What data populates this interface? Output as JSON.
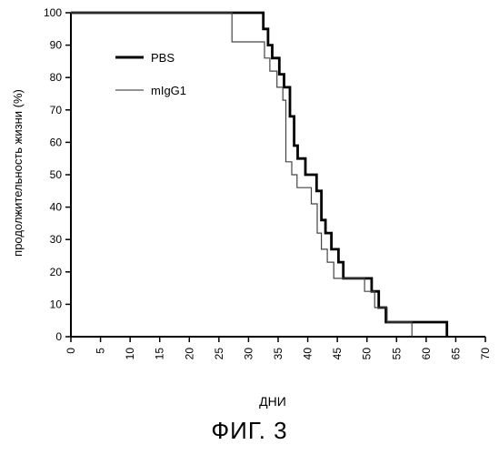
{
  "chart_data": {
    "type": "line",
    "xlabel": "ДНИ",
    "ylabel": "продолжительность жизни (%)",
    "xlim": [
      0,
      70
    ],
    "ylim": [
      0,
      100
    ],
    "x_ticks": [
      "0",
      "5",
      "10",
      "15",
      "20",
      "25",
      "30",
      "35",
      "40",
      "45",
      "50",
      "55",
      "60",
      "65",
      "70"
    ],
    "y_ticks": [
      "0",
      "10",
      "20",
      "30",
      "40",
      "50",
      "60",
      "70",
      "80",
      "90",
      "100"
    ],
    "legend_position": "upper-left",
    "grid": false,
    "series": [
      {
        "name": "PBS",
        "style": "thick",
        "color": "#000000",
        "x": [
          0,
          32.5,
          32.5,
          33.3,
          33.3,
          34,
          34,
          35.2,
          35.2,
          36,
          36,
          37,
          37,
          37.7,
          37.7,
          38.3,
          38.3,
          39.6,
          39.6,
          41.5,
          41.5,
          42.3,
          42.3,
          43,
          43,
          44,
          44,
          45.2,
          45.2,
          46,
          46,
          50.8,
          50.8,
          52,
          52,
          53.2,
          53.2,
          56.5,
          56.5,
          63.5,
          63.5
        ],
        "y": [
          100,
          100,
          95,
          95,
          90,
          90,
          86,
          86,
          81,
          81,
          77,
          77,
          68,
          68,
          59,
          59,
          55,
          55,
          50,
          50,
          45,
          45,
          36,
          36,
          32,
          32,
          27,
          27,
          23,
          23,
          18,
          18,
          14,
          14,
          9,
          9,
          4.5,
          4.5,
          4.5,
          4.5,
          0
        ]
      },
      {
        "name": "mIgG1",
        "style": "thin",
        "color": "#000000",
        "x": [
          0,
          27.2,
          27.2,
          32.7,
          32.7,
          33.6,
          33.6,
          34.8,
          34.8,
          35.8,
          35.8,
          36.3,
          36.3,
          37.3,
          37.3,
          38.2,
          38.2,
          39.2,
          39.2,
          40.6,
          40.6,
          41.6,
          41.6,
          42.3,
          42.3,
          43.3,
          43.3,
          44.4,
          44.4,
          45.5,
          45.5,
          49.6,
          49.6,
          51.3,
          51.3,
          52.3,
          52.3,
          53.4,
          53.4,
          57.6,
          57.6
        ],
        "y": [
          100,
          100,
          91,
          91,
          86,
          86,
          82,
          82,
          77,
          77,
          73,
          73,
          54,
          54,
          50,
          50,
          46,
          46,
          46,
          46,
          41,
          41,
          32,
          32,
          27,
          27,
          23,
          23,
          18,
          18,
          18,
          18,
          14,
          14,
          9,
          9,
          9,
          9,
          4.5,
          4.5,
          0
        ]
      }
    ]
  },
  "figure": {
    "caption": "ФИГ. 3"
  }
}
